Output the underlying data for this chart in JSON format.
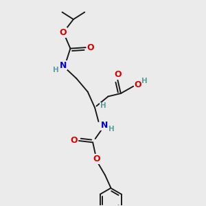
{
  "bg_color": "#ebebeb",
  "bond_color": "#1a1a1a",
  "oxygen_color": "#dd0000",
  "nitrogen_color": "#0000cc",
  "hydrogen_color": "#5f9ea0",
  "font_size": 9.0,
  "font_size_h": 7.5,
  "line_width": 1.4,
  "figsize": [
    3.0,
    3.0
  ],
  "dpi": 100,
  "xlim": [
    0,
    10
  ],
  "ylim": [
    0,
    10
  ]
}
